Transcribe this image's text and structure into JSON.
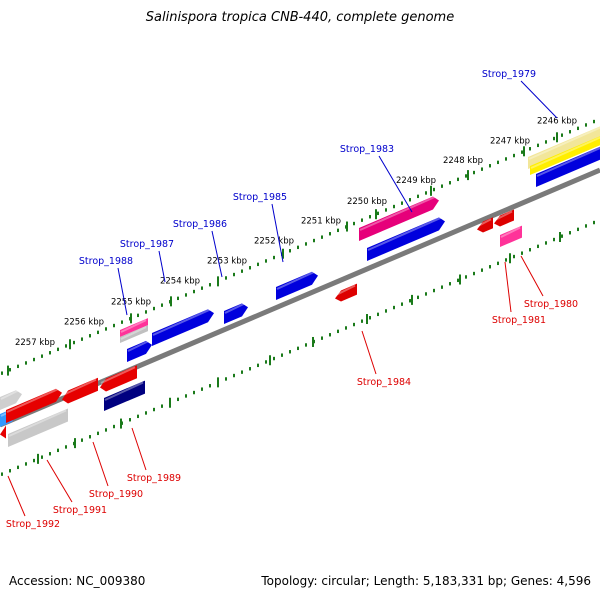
{
  "title": "Salinispora tropica CNB-440, complete genome",
  "footer": {
    "accession": "Accession: NC_009380",
    "summary": "Topology: circular; Length: 5,183,331 bp; Genes: 4,596"
  },
  "colors": {
    "forward_label": "#0000cc",
    "reverse_label": "#dd0000",
    "tick": "#1a7a1a",
    "backbone": "#888888"
  },
  "kbp_labels": [
    "2246 kbp",
    "2247 kbp",
    "2248 kbp",
    "2249 kbp",
    "2250 kbp",
    "2251 kbp",
    "2252 kbp",
    "2253 kbp",
    "2254 kbp",
    "2255 kbp",
    "2256 kbp",
    "2257 kbp"
  ],
  "gene_labels": {
    "forward": [
      "Strop_1979",
      "Strop_1983",
      "Strop_1985",
      "Strop_1986",
      "Strop_1987",
      "Strop_1988"
    ],
    "reverse": [
      "Strop_1980",
      "Strop_1981",
      "Strop_1984",
      "Strop_1989",
      "Strop_1990",
      "Strop_1991",
      "Strop_1992"
    ]
  }
}
